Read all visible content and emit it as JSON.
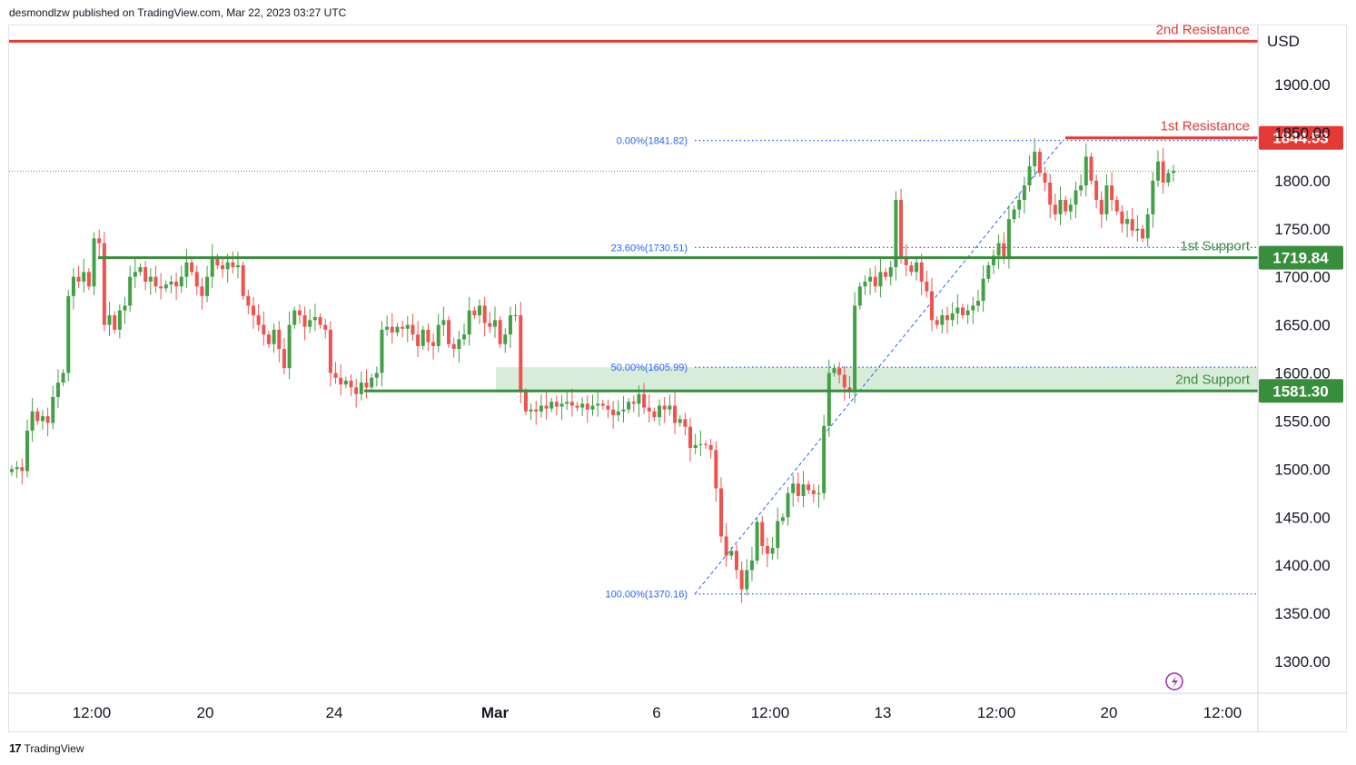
{
  "header": {
    "published_by": "desmondlzw published on TradingView.com, Mar 22, 2023 03:27 UTC"
  },
  "footer": {
    "logo_text": "TradingView"
  },
  "colors": {
    "bull": "#43a047",
    "bear": "#ef5350",
    "resistance": "#e53935",
    "support": "#388e3c",
    "fib": "#2962ff",
    "zone": "#c8e6c9"
  },
  "chart_data": {
    "type": "candlestick",
    "currency": "USD",
    "y_ticks": [
      "1300.00",
      "1350.00",
      "1400.00",
      "1450.00",
      "1500.00",
      "1550.00",
      "1600.00",
      "1650.00",
      "1700.00",
      "1750.00",
      "1800.00",
      "1850.00",
      "1900.00"
    ],
    "ylim": [
      1265,
      1960
    ],
    "x_labels": [
      "12:00",
      "20",
      "24",
      "Mar",
      "6",
      "12:00",
      "13",
      "12:00",
      "20",
      "12:00"
    ],
    "levels": [
      {
        "name": "2nd Resistance",
        "price": 1945,
        "color": "#e53935",
        "badge": ""
      },
      {
        "name": "1st Resistance",
        "price": 1844.53,
        "color": "#e53935",
        "badge": "1844.53"
      },
      {
        "name": "1st Support",
        "price": 1719.84,
        "color": "#388e3c",
        "badge": "1719.84"
      },
      {
        "name": "2nd Support",
        "price": 1581.3,
        "color": "#388e3c",
        "badge": "1581.30"
      }
    ],
    "fib_levels": [
      {
        "label": "0.00%(1841.82)",
        "price": 1841.82
      },
      {
        "label": "23.60%(1730.51)",
        "price": 1730.51
      },
      {
        "label": "50.00%(1605.99)",
        "price": 1605.99
      },
      {
        "label": "100.00%(1370.16)",
        "price": 1370.16
      }
    ],
    "zone": [
      1581.3,
      1605.99
    ],
    "last_price": 1810,
    "closes": [
      1500,
      1502,
      1498,
      1540,
      1560,
      1550,
      1555,
      1548,
      1575,
      1590,
      1600,
      1680,
      1700,
      1695,
      1705,
      1690,
      1740,
      1735,
      1650,
      1660,
      1645,
      1665,
      1670,
      1700,
      1705,
      1710,
      1695,
      1700,
      1690,
      1688,
      1692,
      1695,
      1690,
      1700,
      1715,
      1705,
      1690,
      1680,
      1700,
      1720,
      1712,
      1708,
      1715,
      1710,
      1712,
      1680,
      1670,
      1660,
      1650,
      1640,
      1630,
      1645,
      1625,
      1605,
      1650,
      1665,
      1660,
      1648,
      1655,
      1658,
      1650,
      1645,
      1600,
      1595,
      1588,
      1592,
      1585,
      1578,
      1590,
      1585,
      1595,
      1600,
      1645,
      1648,
      1642,
      1648,
      1646,
      1650,
      1640,
      1628,
      1645,
      1632,
      1628,
      1650,
      1655,
      1630,
      1625,
      1635,
      1640,
      1665,
      1660,
      1670,
      1652,
      1648,
      1655,
      1630,
      1640,
      1660,
      1660,
      1580,
      1560,
      1562,
      1560,
      1566,
      1563,
      1570,
      1565,
      1568,
      1570,
      1566,
      1564,
      1568,
      1562,
      1566,
      1568,
      1566,
      1562,
      1556,
      1560,
      1562,
      1570,
      1568,
      1578,
      1564,
      1560,
      1554,
      1566,
      1562,
      1566,
      1548,
      1552,
      1544,
      1522,
      1525,
      1526,
      1525,
      1520,
      1480,
      1430,
      1410,
      1415,
      1395,
      1375,
      1395,
      1405,
      1445,
      1420,
      1412,
      1418,
      1446,
      1450,
      1475,
      1485,
      1472,
      1484,
      1478,
      1474,
      1475,
      1545,
      1600,
      1605,
      1598,
      1585,
      1580,
      1670,
      1690,
      1695,
      1700,
      1690,
      1705,
      1700,
      1710,
      1780,
      1720,
      1712,
      1705,
      1715,
      1695,
      1685,
      1655,
      1650,
      1660,
      1655,
      1662,
      1668,
      1660,
      1665,
      1670,
      1675,
      1698,
      1712,
      1722,
      1735,
      1720,
      1760,
      1770,
      1780,
      1795,
      1815,
      1830,
      1808,
      1798,
      1775,
      1765,
      1780,
      1768,
      1775,
      1790,
      1795,
      1825,
      1800,
      1780,
      1765,
      1795,
      1780,
      1768,
      1755,
      1760,
      1748,
      1750,
      1740,
      1765,
      1800,
      1820,
      1798,
      1808,
      1810
    ],
    "x_period": {
      "start": 0,
      "end": 223,
      "unit": "candle index"
    }
  }
}
